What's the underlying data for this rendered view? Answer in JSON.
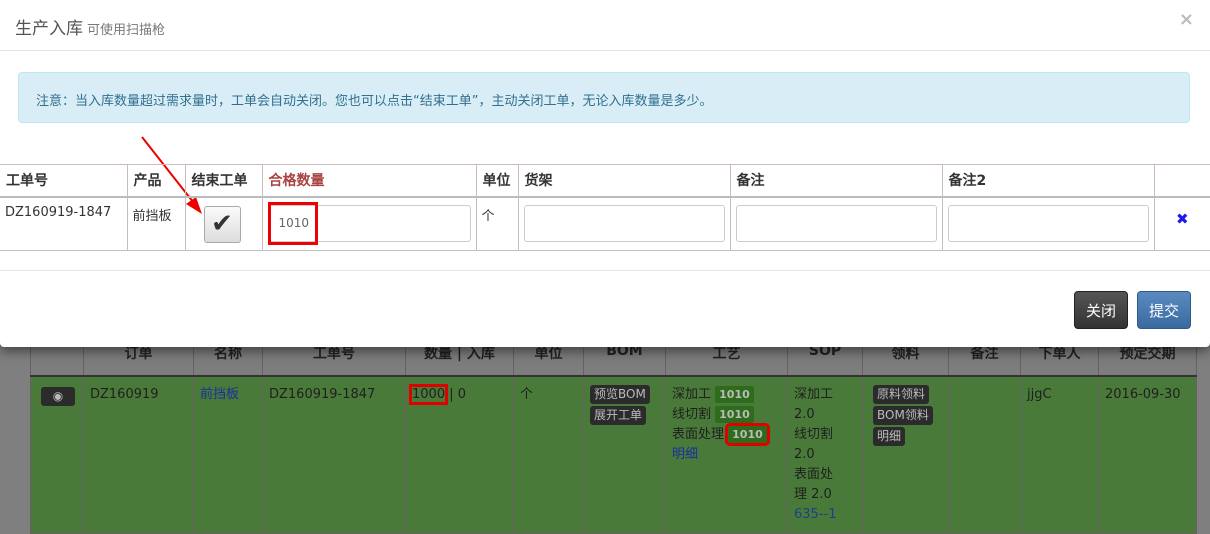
{
  "modal": {
    "title": "生产入库",
    "subtitle": "可使用扫描枪",
    "close": "×",
    "notice": "注意：当入库数量超过需求量时，工单会自动关闭。您也可以点击“结束工单”，主动关闭工单，无论入库数量是多少。",
    "headers": [
      "工单号",
      "产品",
      "结束工单",
      "合格数量",
      "单位",
      "货架",
      "备注",
      "备注2"
    ],
    "row": {
      "order_no": "DZ160919-1847",
      "product": "前挡板",
      "close_order_checked": true,
      "qty": "1010",
      "unit": "个",
      "shelf": "",
      "remark": "",
      "remark2": ""
    },
    "close_button": "关闭",
    "submit_button": "提交"
  },
  "background": {
    "headers": [
      "",
      "订单",
      "名称",
      "工单号",
      "数量 | 入库",
      "单位",
      "BOM",
      "工艺",
      "SOP",
      "领料",
      "备注",
      "下单人",
      "预定交期"
    ],
    "row": {
      "order": "DZ160919",
      "name": "前挡板",
      "work_no": "DZ160919-1847",
      "qty": "1000",
      "in": "0",
      "unit": "个",
      "bom_buttons": [
        "预览BOM",
        "展开工单"
      ],
      "processes": [
        {
          "name": "深加工",
          "count": "1010"
        },
        {
          "name": "线切割",
          "count": "1010"
        },
        {
          "name": "表面处理",
          "count": "1010"
        }
      ],
      "process_link": "明细",
      "sop_lines": [
        "深加工",
        "2.0",
        "线切割",
        "2.0",
        "表面处",
        "理 2.0"
      ],
      "sop_link": "635--1",
      "material_buttons": [
        "原料领料",
        "BOM领料",
        "明细"
      ],
      "remark": "",
      "creator": "jjgC",
      "due": "2016-09-30"
    }
  }
}
